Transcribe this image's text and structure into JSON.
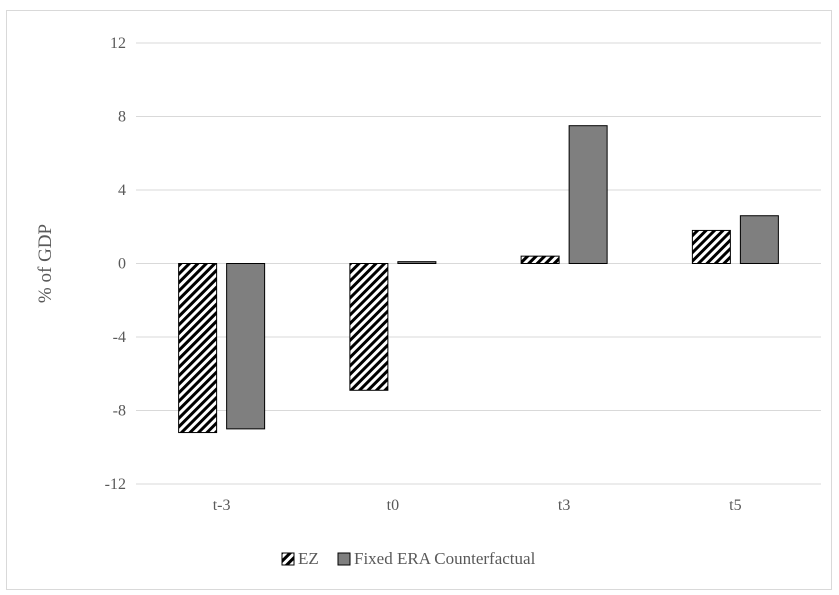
{
  "chart_data": {
    "type": "bar",
    "title": "",
    "xlabel": "",
    "ylabel": "% of GDP",
    "ylim": [
      -12,
      12
    ],
    "yticks": [
      -12,
      -8,
      -4,
      0,
      4,
      8,
      12
    ],
    "categories": [
      "t-3",
      "t0",
      "t3",
      "t5"
    ],
    "series": [
      {
        "name": "EZ",
        "values": [
          -9.2,
          -6.9,
          0.4,
          1.8
        ],
        "pattern": "diagonal-hatch",
        "color": "#000000"
      },
      {
        "name": "Fixed ERA Counterfactual",
        "values": [
          -9.0,
          0.1,
          7.5,
          2.6
        ],
        "pattern": "solid",
        "color": "#7f7f7f"
      }
    ],
    "grid": true,
    "legend": "bottom",
    "colors": {
      "gridline": "#d9d9d9",
      "text": "#595959",
      "bar_outline": "#000000"
    }
  }
}
